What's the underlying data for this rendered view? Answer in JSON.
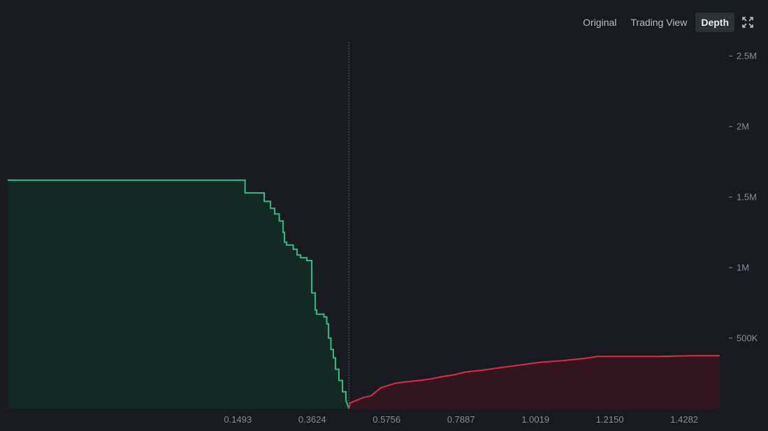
{
  "toolbar": {
    "original_label": "Original",
    "tradingview_label": "Trading View",
    "depth_label": "Depth",
    "expand_icon": "expand-icon"
  },
  "colors": {
    "background": "#181a20",
    "bid_line": "#2ebd85",
    "bid_fill": "#132a24",
    "ask_line": "#e0294a",
    "ask_fill": "#31161f",
    "axis_text": "#848e9c"
  },
  "chart_data": {
    "type": "area",
    "x_ticks": [
      "0.1493",
      "0.3624",
      "0.5756",
      "0.7887",
      "1.0019",
      "1.2150",
      "1.4282"
    ],
    "x_tick_values": [
      0.1493,
      0.3624,
      0.5756,
      0.7887,
      1.0019,
      1.215,
      1.4282
    ],
    "y_ticks": [
      "500K",
      "1M",
      "1.5M",
      "2M",
      "2.5M"
    ],
    "y_tick_values": [
      500000,
      1000000,
      1500000,
      2000000,
      2500000
    ],
    "xlim": [
      -0.52,
      1.56
    ],
    "ylim": [
      0,
      2600000
    ],
    "mid_price": 0.4676,
    "series": [
      {
        "side": "bid",
        "points": [
          [
            -0.51,
            1620000
          ],
          [
            0.17,
            1620000
          ],
          [
            0.17,
            1530000
          ],
          [
            0.225,
            1530000
          ],
          [
            0.225,
            1470000
          ],
          [
            0.243,
            1470000
          ],
          [
            0.243,
            1420000
          ],
          [
            0.255,
            1420000
          ],
          [
            0.255,
            1380000
          ],
          [
            0.268,
            1380000
          ],
          [
            0.268,
            1330000
          ],
          [
            0.279,
            1330000
          ],
          [
            0.279,
            1250000
          ],
          [
            0.283,
            1250000
          ],
          [
            0.283,
            1180000
          ],
          [
            0.289,
            1180000
          ],
          [
            0.289,
            1160000
          ],
          [
            0.308,
            1160000
          ],
          [
            0.308,
            1130000
          ],
          [
            0.319,
            1130000
          ],
          [
            0.319,
            1090000
          ],
          [
            0.329,
            1090000
          ],
          [
            0.329,
            1070000
          ],
          [
            0.347,
            1070000
          ],
          [
            0.347,
            1050000
          ],
          [
            0.361,
            1050000
          ],
          [
            0.361,
            820000
          ],
          [
            0.371,
            820000
          ],
          [
            0.371,
            700000
          ],
          [
            0.375,
            700000
          ],
          [
            0.375,
            670000
          ],
          [
            0.396,
            670000
          ],
          [
            0.396,
            650000
          ],
          [
            0.404,
            650000
          ],
          [
            0.404,
            600000
          ],
          [
            0.409,
            600000
          ],
          [
            0.409,
            500000
          ],
          [
            0.416,
            500000
          ],
          [
            0.416,
            420000
          ],
          [
            0.423,
            420000
          ],
          [
            0.423,
            360000
          ],
          [
            0.429,
            360000
          ],
          [
            0.429,
            280000
          ],
          [
            0.439,
            280000
          ],
          [
            0.439,
            200000
          ],
          [
            0.449,
            200000
          ],
          [
            0.449,
            120000
          ],
          [
            0.459,
            120000
          ],
          [
            0.459,
            60000
          ],
          [
            0.4676,
            0
          ]
        ]
      },
      {
        "side": "ask",
        "points": [
          [
            0.4676,
            0
          ],
          [
            0.471,
            40000
          ],
          [
            0.49,
            60000
          ],
          [
            0.51,
            80000
          ],
          [
            0.53,
            90000
          ],
          [
            0.545,
            120000
          ],
          [
            0.56,
            150000
          ],
          [
            0.575,
            160000
          ],
          [
            0.6,
            180000
          ],
          [
            0.63,
            190000
          ],
          [
            0.67,
            200000
          ],
          [
            0.7,
            210000
          ],
          [
            0.74,
            230000
          ],
          [
            0.77,
            240000
          ],
          [
            0.8,
            260000
          ],
          [
            0.84,
            270000
          ],
          [
            0.87,
            280000
          ],
          [
            0.9,
            290000
          ],
          [
            0.93,
            300000
          ],
          [
            0.96,
            310000
          ],
          [
            0.99,
            320000
          ],
          [
            1.02,
            330000
          ],
          [
            1.08,
            340000
          ],
          [
            1.14,
            355000
          ],
          [
            1.18,
            370000
          ],
          [
            1.25,
            370000
          ],
          [
            1.35,
            370000
          ],
          [
            1.45,
            375000
          ],
          [
            1.53,
            375000
          ]
        ]
      }
    ]
  }
}
